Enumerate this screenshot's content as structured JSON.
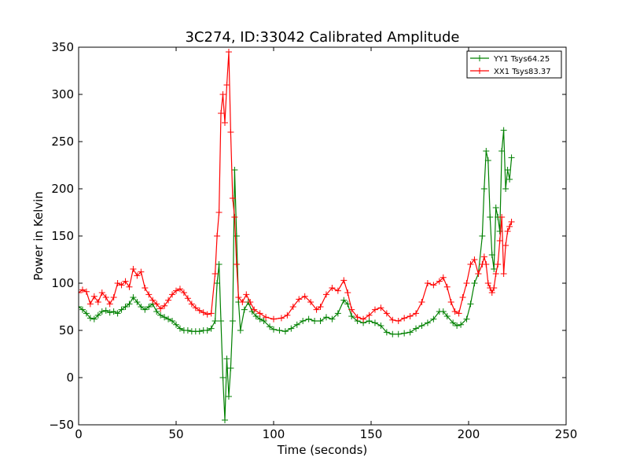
{
  "chart_data": {
    "type": "line",
    "title": "3C274, ID:33042 Calibrated Amplitude",
    "xlabel": "Time (seconds)",
    "ylabel": "Power in Kelvin",
    "xlim": [
      0,
      250
    ],
    "ylim": [
      -50,
      350
    ],
    "x_ticks": [
      0,
      50,
      100,
      150,
      200,
      250
    ],
    "y_ticks": [
      -50,
      0,
      50,
      100,
      150,
      200,
      250,
      300,
      350
    ],
    "y_tick_labels": [
      "−50",
      "0",
      "50",
      "100",
      "150",
      "200",
      "250",
      "300",
      "350"
    ],
    "grid": false,
    "legend_position": "top-right",
    "marker": "+",
    "series": [
      {
        "name": "YY1 Tsys64.25",
        "color": "#008000",
        "points": [
          [
            0,
            75
          ],
          [
            2,
            72
          ],
          [
            4,
            68
          ],
          [
            6,
            63
          ],
          [
            8,
            62
          ],
          [
            10,
            66
          ],
          [
            12,
            70
          ],
          [
            14,
            71
          ],
          [
            16,
            69
          ],
          [
            18,
            70
          ],
          [
            20,
            68
          ],
          [
            22,
            72
          ],
          [
            24,
            75
          ],
          [
            26,
            78
          ],
          [
            28,
            85
          ],
          [
            30,
            80
          ],
          [
            32,
            75
          ],
          [
            34,
            72
          ],
          [
            36,
            75
          ],
          [
            38,
            78
          ],
          [
            40,
            70
          ],
          [
            42,
            66
          ],
          [
            44,
            64
          ],
          [
            46,
            62
          ],
          [
            48,
            60
          ],
          [
            50,
            56
          ],
          [
            52,
            52
          ],
          [
            54,
            50
          ],
          [
            56,
            50
          ],
          [
            58,
            49
          ],
          [
            60,
            49
          ],
          [
            62,
            49
          ],
          [
            64,
            50
          ],
          [
            66,
            50
          ],
          [
            68,
            52
          ],
          [
            70,
            60
          ],
          [
            71,
            100
          ],
          [
            72,
            120
          ],
          [
            73,
            60
          ],
          [
            74,
            0
          ],
          [
            75,
            -45
          ],
          [
            76,
            20
          ],
          [
            77,
            -20
          ],
          [
            78,
            10
          ],
          [
            79,
            60
          ],
          [
            80,
            220
          ],
          [
            81,
            150
          ],
          [
            82,
            80
          ],
          [
            83,
            50
          ],
          [
            85,
            72
          ],
          [
            87,
            80
          ],
          [
            89,
            70
          ],
          [
            91,
            65
          ],
          [
            93,
            62
          ],
          [
            95,
            60
          ],
          [
            98,
            54
          ],
          [
            100,
            51
          ],
          [
            103,
            50
          ],
          [
            106,
            49
          ],
          [
            109,
            52
          ],
          [
            112,
            56
          ],
          [
            115,
            60
          ],
          [
            118,
            62
          ],
          [
            121,
            60
          ],
          [
            124,
            60
          ],
          [
            127,
            64
          ],
          [
            130,
            62
          ],
          [
            133,
            68
          ],
          [
            136,
            82
          ],
          [
            138,
            78
          ],
          [
            140,
            65
          ],
          [
            143,
            60
          ],
          [
            146,
            58
          ],
          [
            149,
            60
          ],
          [
            152,
            58
          ],
          [
            155,
            55
          ],
          [
            158,
            48
          ],
          [
            161,
            46
          ],
          [
            164,
            46
          ],
          [
            167,
            47
          ],
          [
            170,
            48
          ],
          [
            173,
            52
          ],
          [
            176,
            55
          ],
          [
            179,
            58
          ],
          [
            182,
            62
          ],
          [
            185,
            70
          ],
          [
            187,
            70
          ],
          [
            189,
            65
          ],
          [
            192,
            58
          ],
          [
            194,
            55
          ],
          [
            196,
            56
          ],
          [
            199,
            62
          ],
          [
            201,
            78
          ],
          [
            203,
            100
          ],
          [
            205,
            110
          ],
          [
            207,
            150
          ],
          [
            208,
            200
          ],
          [
            209,
            240
          ],
          [
            210,
            230
          ],
          [
            211,
            170
          ],
          [
            212,
            130
          ],
          [
            213,
            115
          ],
          [
            214,
            180
          ],
          [
            215,
            170
          ],
          [
            216,
            155
          ],
          [
            217,
            240
          ],
          [
            218,
            262
          ],
          [
            219,
            200
          ],
          [
            220,
            220
          ],
          [
            221,
            210
          ],
          [
            222,
            233
          ]
        ]
      },
      {
        "name": "XX1 Tsys83.37",
        "color": "#ff0000",
        "points": [
          [
            0,
            90
          ],
          [
            2,
            93
          ],
          [
            4,
            91
          ],
          [
            6,
            78
          ],
          [
            8,
            86
          ],
          [
            10,
            80
          ],
          [
            12,
            90
          ],
          [
            14,
            85
          ],
          [
            16,
            78
          ],
          [
            18,
            85
          ],
          [
            20,
            100
          ],
          [
            22,
            98
          ],
          [
            24,
            102
          ],
          [
            26,
            96
          ],
          [
            28,
            115
          ],
          [
            30,
            108
          ],
          [
            32,
            112
          ],
          [
            34,
            95
          ],
          [
            36,
            88
          ],
          [
            38,
            82
          ],
          [
            40,
            78
          ],
          [
            42,
            73
          ],
          [
            44,
            76
          ],
          [
            46,
            82
          ],
          [
            48,
            88
          ],
          [
            50,
            92
          ],
          [
            52,
            94
          ],
          [
            54,
            90
          ],
          [
            56,
            84
          ],
          [
            58,
            78
          ],
          [
            60,
            74
          ],
          [
            62,
            71
          ],
          [
            64,
            69
          ],
          [
            66,
            67
          ],
          [
            68,
            68
          ],
          [
            70,
            110
          ],
          [
            71,
            150
          ],
          [
            72,
            175
          ],
          [
            73,
            280
          ],
          [
            74,
            300
          ],
          [
            75,
            270
          ],
          [
            76,
            310
          ],
          [
            77,
            345
          ],
          [
            78,
            260
          ],
          [
            79,
            190
          ],
          [
            80,
            170
          ],
          [
            81,
            120
          ],
          [
            82,
            85
          ],
          [
            84,
            80
          ],
          [
            86,
            88
          ],
          [
            88,
            80
          ],
          [
            90,
            72
          ],
          [
            93,
            68
          ],
          [
            96,
            64
          ],
          [
            100,
            62
          ],
          [
            104,
            63
          ],
          [
            107,
            66
          ],
          [
            110,
            75
          ],
          [
            113,
            83
          ],
          [
            116,
            86
          ],
          [
            119,
            80
          ],
          [
            122,
            72
          ],
          [
            124,
            75
          ],
          [
            127,
            88
          ],
          [
            130,
            95
          ],
          [
            133,
            92
          ],
          [
            136,
            103
          ],
          [
            138,
            90
          ],
          [
            140,
            72
          ],
          [
            143,
            64
          ],
          [
            146,
            62
          ],
          [
            149,
            66
          ],
          [
            152,
            72
          ],
          [
            155,
            74
          ],
          [
            158,
            68
          ],
          [
            161,
            61
          ],
          [
            164,
            60
          ],
          [
            167,
            63
          ],
          [
            170,
            65
          ],
          [
            173,
            68
          ],
          [
            176,
            80
          ],
          [
            179,
            100
          ],
          [
            182,
            98
          ],
          [
            185,
            102
          ],
          [
            187,
            106
          ],
          [
            189,
            96
          ],
          [
            191,
            80
          ],
          [
            193,
            70
          ],
          [
            195,
            68
          ],
          [
            197,
            85
          ],
          [
            199,
            100
          ],
          [
            201,
            120
          ],
          [
            203,
            125
          ],
          [
            205,
            110
          ],
          [
            207,
            120
          ],
          [
            208,
            128
          ],
          [
            209,
            120
          ],
          [
            210,
            100
          ],
          [
            211,
            95
          ],
          [
            212,
            90
          ],
          [
            213,
            95
          ],
          [
            214,
            110
          ],
          [
            215,
            120
          ],
          [
            216,
            145
          ],
          [
            217,
            170
          ],
          [
            218,
            110
          ],
          [
            219,
            140
          ],
          [
            220,
            155
          ],
          [
            221,
            160
          ],
          [
            222,
            165
          ]
        ]
      }
    ]
  }
}
